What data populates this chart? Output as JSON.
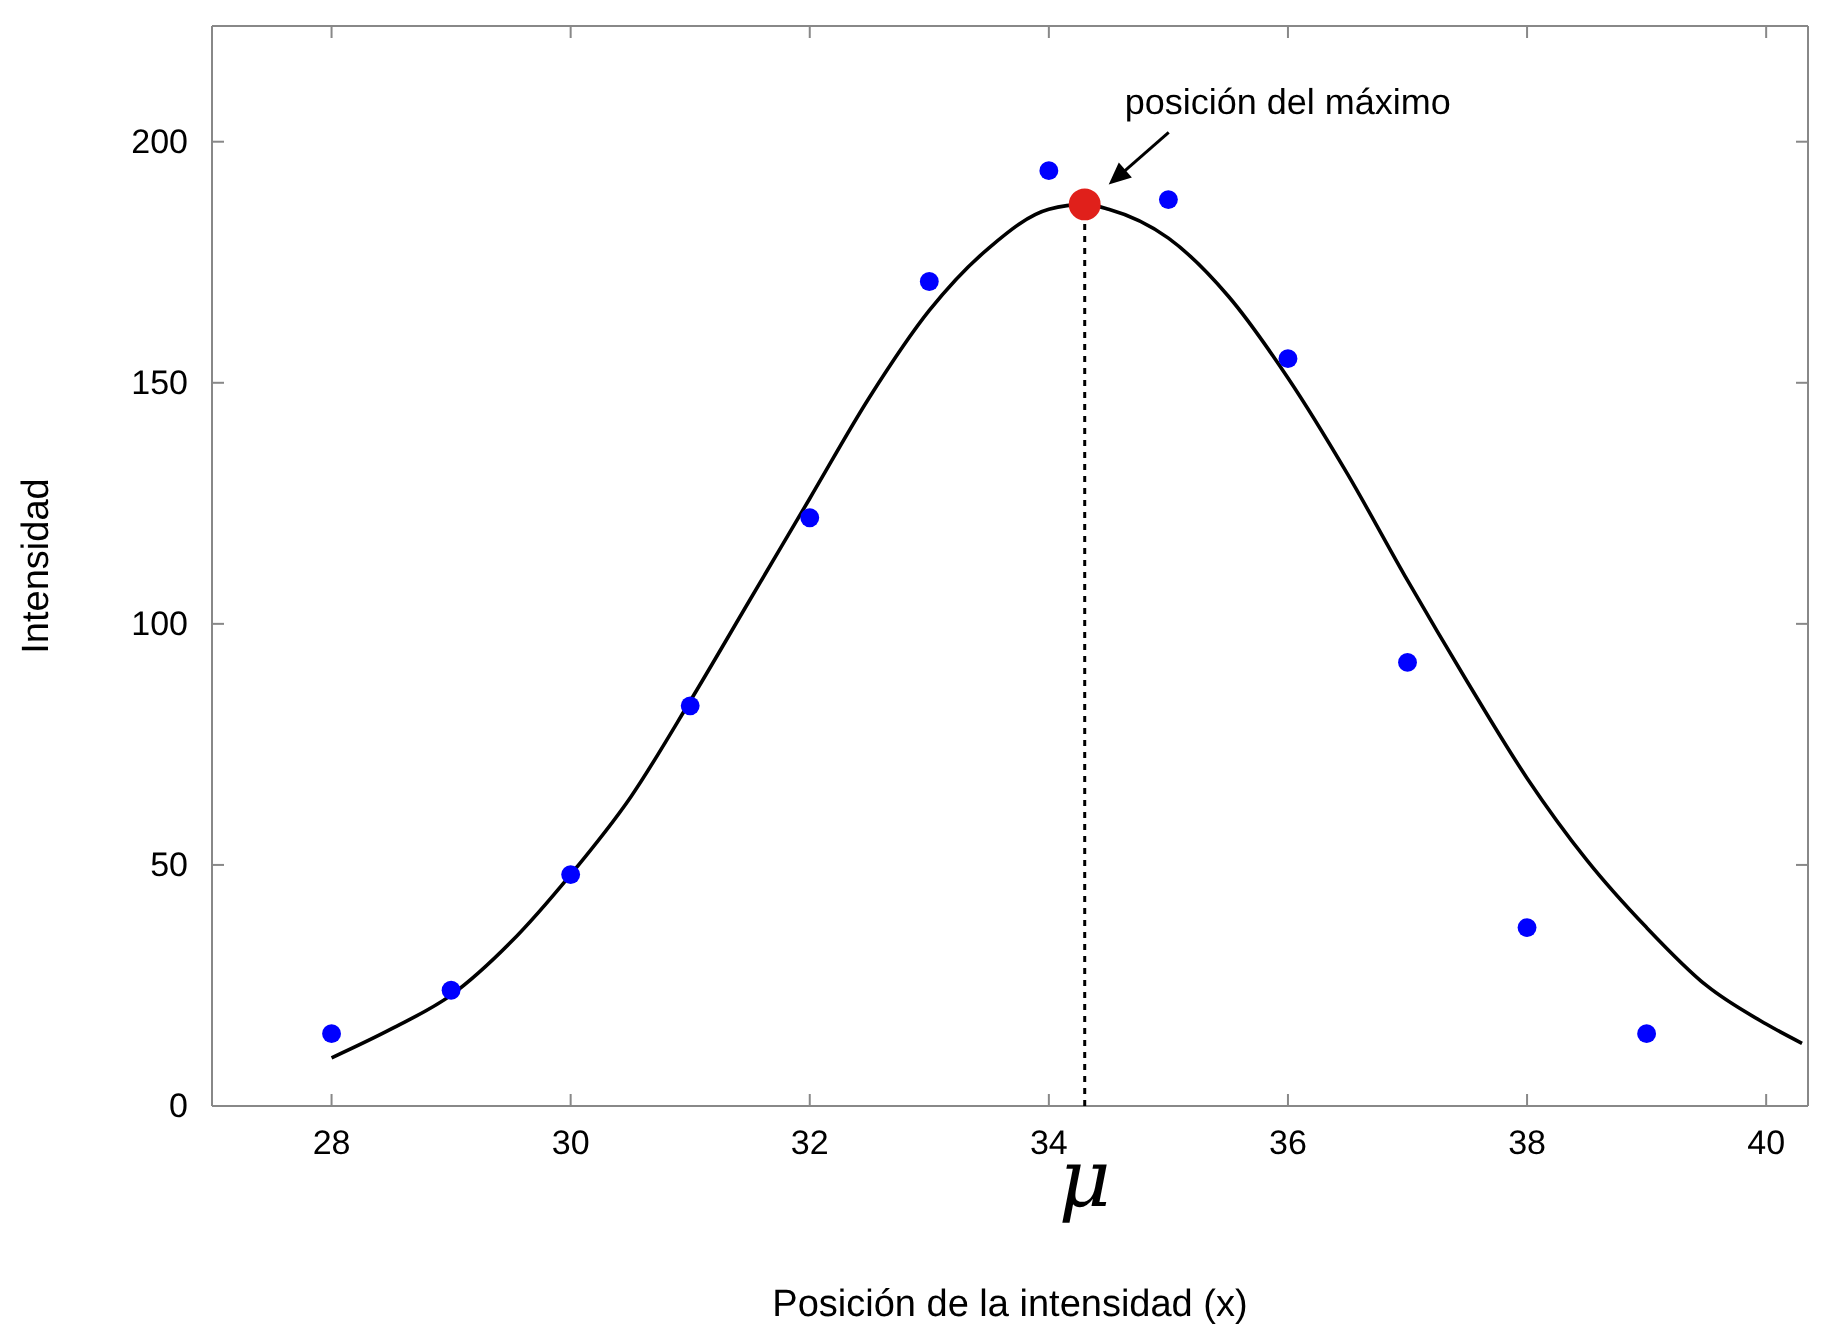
{
  "chart_data": {
    "type": "scatter",
    "xlabel": "Posición de la intensidad (x)",
    "ylabel": "Intensidad",
    "xlim": [
      27,
      40.35
    ],
    "ylim": [
      0,
      224
    ],
    "xticks": [
      28,
      30,
      32,
      34,
      36,
      38,
      40
    ],
    "yticks": [
      0,
      50,
      100,
      150,
      200
    ],
    "grid": false,
    "series": [
      {
        "type": "line",
        "color": "#000000",
        "marker": "none",
        "line_style": "solid",
        "x": [
          28,
          28.5,
          29,
          29.5,
          30,
          30.5,
          31,
          31.5,
          32,
          32.5,
          33,
          33.5,
          34,
          34.3,
          34.5,
          35,
          35.5,
          36,
          36.5,
          37,
          37.5,
          38,
          38.5,
          39,
          39.5,
          40,
          40.3
        ],
        "values": [
          10,
          16,
          23,
          34,
          48,
          64,
          84,
          105,
          126,
          147,
          165,
          178,
          186,
          187,
          186,
          180,
          168,
          151,
          131,
          109,
          88,
          68,
          51,
          37,
          25,
          17,
          13
        ]
      },
      {
        "color": "#0000ff",
        "marker": "circle",
        "x": [
          28,
          29,
          30,
          31,
          32,
          33,
          34,
          35,
          36,
          37,
          38,
          39
        ],
        "values": [
          15,
          24,
          48,
          83,
          122,
          171,
          194,
          188,
          155,
          92,
          37,
          15
        ]
      },
      {
        "color": "#e0201b",
        "marker": "circle",
        "x": [
          34.3
        ],
        "values": [
          187
        ]
      }
    ],
    "ref_lines": [
      {
        "axis": "x",
        "value": 34.3,
        "label": "μ",
        "line_style": "dotted",
        "color": "#000000"
      }
    ],
    "annotations": [
      {
        "text": "posición del máximo",
        "x": 34.3,
        "y": 187
      }
    ]
  }
}
